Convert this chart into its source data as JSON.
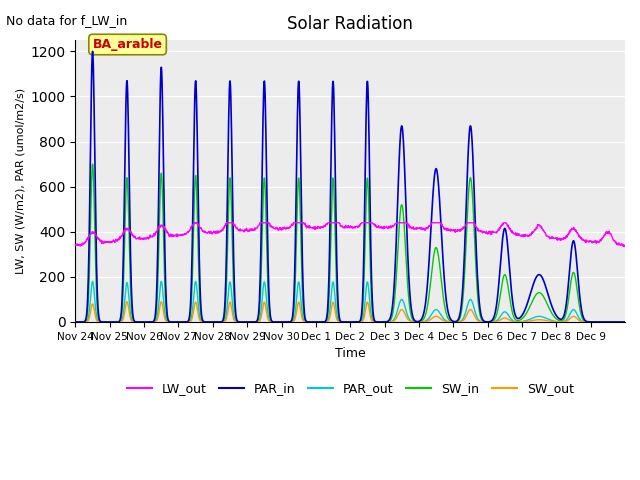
{
  "title": "Solar Radiation",
  "subtitle": "No data for f_LW_in",
  "xlabel": "Time",
  "ylabel": "LW, SW (W/m2), PAR (umol/m2/s)",
  "legend_labels": [
    "LW_out",
    "PAR_in",
    "PAR_out",
    "SW_in",
    "SW_out"
  ],
  "legend_colors": [
    "#ff00ff",
    "#0000cc",
    "#00cccc",
    "#00cc00",
    "#ff9900"
  ],
  "annotation_text": "BA_arable",
  "annotation_color": "#cc0000",
  "annotation_bg": "#ffff99",
  "ylim": [
    0,
    1250
  ],
  "yticks": [
    0,
    200,
    400,
    600,
    800,
    1000,
    1200
  ],
  "n_days": 16,
  "tick_labels": [
    "Nov 24",
    "Nov 25",
    "Nov 26",
    "Nov 27",
    "Nov 28",
    "Nov 29",
    "Nov 30",
    "Dec 1",
    "Dec 2",
    "Dec 3",
    "Dec 4",
    "Dec 5",
    "Dec 6",
    "Dec 7",
    "Dec 8",
    "Dec 9"
  ],
  "par_peaks": [
    1200,
    1070,
    1130,
    1070,
    1070,
    1070,
    1070,
    1070,
    1070,
    870,
    680,
    870,
    415,
    210,
    360,
    0
  ],
  "par_widths": [
    0.065,
    0.065,
    0.065,
    0.065,
    0.065,
    0.065,
    0.065,
    0.065,
    0.065,
    0.12,
    0.15,
    0.12,
    0.13,
    0.25,
    0.12,
    0.1
  ],
  "sw_peaks": [
    700,
    640,
    660,
    650,
    640,
    640,
    640,
    640,
    640,
    520,
    330,
    640,
    210,
    130,
    220,
    0
  ],
  "par_out_peaks": [
    180,
    175,
    180,
    180,
    178,
    178,
    178,
    178,
    178,
    100,
    55,
    100,
    45,
    25,
    55,
    0
  ],
  "sw_out_peaks": [
    80,
    90,
    90,
    88,
    88,
    88,
    88,
    88,
    88,
    55,
    25,
    55,
    18,
    10,
    25,
    0
  ]
}
